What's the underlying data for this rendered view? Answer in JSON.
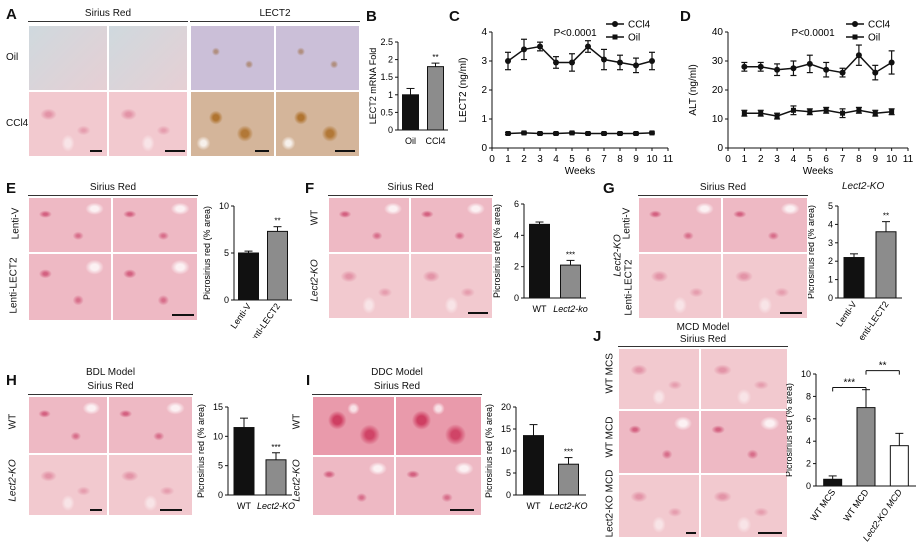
{
  "panels": {
    "A": {
      "letter": "A",
      "headers": [
        "Sirius Red",
        "LECT2"
      ],
      "rows": [
        "Oil",
        "CCl4"
      ]
    },
    "B": {
      "letter": "B"
    },
    "C": {
      "letter": "C"
    },
    "D": {
      "letter": "D"
    },
    "E": {
      "letter": "E",
      "header": "Sirius Red",
      "rows": [
        "Lenti-V",
        "Lenti-LECT2"
      ]
    },
    "F": {
      "letter": "F",
      "header": "Sirius Red",
      "rows": [
        "WT",
        "Lect2-KO"
      ]
    },
    "G": {
      "letter": "G",
      "header": "Sirius Red",
      "group": "Lect2-KO",
      "rows": [
        "Lenti-V",
        "Lenti-LECT2"
      ],
      "chart_title": "Lect2-KO"
    },
    "H": {
      "letter": "H",
      "title": "BDL Model",
      "header": "Sirius Red",
      "rows": [
        "WT",
        "Lect2-KO"
      ]
    },
    "I": {
      "letter": "I",
      "title": "DDC Model",
      "header": "Sirius Red",
      "rows": [
        "WT",
        "Lect2-KO"
      ]
    },
    "J": {
      "letter": "J",
      "title": "MCD Model",
      "header": "Sirius Red",
      "rows": [
        "WT MCS",
        "WT MCD",
        "Lect2-KO MCD"
      ]
    }
  },
  "chart_data": [
    {
      "id": "B",
      "type": "bar",
      "categories": [
        "Oil",
        "CCl4"
      ],
      "values": [
        1.0,
        1.8
      ],
      "errors": [
        0.18,
        0.1
      ],
      "colors": [
        "#111111",
        "#8c8c8c"
      ],
      "ylabel": "LECT2 mRNA Fold",
      "ylim": [
        0,
        2.5
      ],
      "yticks": [
        0,
        0.5,
        1,
        1.5,
        2,
        2.5
      ],
      "significance": [
        {
          "text": "**",
          "over": 1
        }
      ]
    },
    {
      "id": "C",
      "type": "line",
      "x": [
        1,
        2,
        3,
        4,
        5,
        6,
        7,
        8,
        9,
        10
      ],
      "series": [
        {
          "name": "CCl4",
          "marker": "circle",
          "values": [
            3.0,
            3.4,
            3.5,
            2.95,
            2.95,
            3.5,
            3.05,
            2.95,
            2.85,
            3.0
          ],
          "errors": [
            0.3,
            0.35,
            0.15,
            0.2,
            0.3,
            0.2,
            0.35,
            0.25,
            0.25,
            0.3
          ]
        },
        {
          "name": "Oil",
          "marker": "square",
          "values": [
            0.5,
            0.52,
            0.5,
            0.5,
            0.52,
            0.5,
            0.5,
            0.5,
            0.5,
            0.52
          ],
          "errors": [
            0.03,
            0.03,
            0.03,
            0.03,
            0.03,
            0.03,
            0.03,
            0.03,
            0.03,
            0.03
          ]
        }
      ],
      "xlabel": "Weeks",
      "ylabel": "LECT2 (ng/ml)",
      "xlim": [
        0,
        11
      ],
      "ylim": [
        0,
        4
      ],
      "xticks": [
        0,
        1,
        2,
        3,
        4,
        5,
        6,
        7,
        8,
        9,
        10,
        11
      ],
      "yticks": [
        0,
        1,
        2,
        3,
        4
      ],
      "annotation": "P<0.0001",
      "legend": "top-right"
    },
    {
      "id": "D",
      "type": "line",
      "x": [
        1,
        2,
        3,
        4,
        5,
        6,
        7,
        8,
        9,
        10
      ],
      "series": [
        {
          "name": "CCl4",
          "marker": "circle",
          "values": [
            28,
            28,
            27,
            27.5,
            29,
            27,
            26,
            32,
            26,
            29.5
          ],
          "errors": [
            1.5,
            1.5,
            2,
            2.5,
            3,
            2.5,
            1.5,
            3.5,
            2.5,
            4
          ]
        },
        {
          "name": "Oil",
          "marker": "square",
          "values": [
            12,
            12,
            11,
            13,
            12.5,
            13,
            12,
            13,
            12,
            12.5
          ],
          "errors": [
            1,
            1,
            1,
            1.5,
            1,
            1,
            1.5,
            1,
            1,
            1
          ]
        }
      ],
      "xlabel": "Weeks",
      "ylabel": "ALT (ng/ml)",
      "xlim": [
        0,
        11
      ],
      "ylim": [
        0,
        40
      ],
      "xticks": [
        0,
        1,
        2,
        3,
        4,
        5,
        6,
        7,
        8,
        9,
        10,
        11
      ],
      "yticks": [
        0,
        10,
        20,
        30,
        40
      ],
      "annotation": "P<0.0001",
      "legend": "top-right"
    },
    {
      "id": "E",
      "type": "bar",
      "categories": [
        "Lenti-V",
        "Lenti-LECT2"
      ],
      "values": [
        5.0,
        7.3
      ],
      "errors": [
        0.2,
        0.5
      ],
      "colors": [
        "#111111",
        "#8c8c8c"
      ],
      "ylabel": "Picrosirius red (% area)",
      "ylim": [
        0,
        10
      ],
      "yticks": [
        0,
        5,
        10
      ],
      "significance": [
        {
          "text": "**",
          "over": 1
        }
      ]
    },
    {
      "id": "F",
      "type": "bar",
      "categories": [
        "WT",
        "Lect2-ko"
      ],
      "values": [
        4.7,
        2.1
      ],
      "errors": [
        0.15,
        0.3
      ],
      "colors": [
        "#111111",
        "#8c8c8c"
      ],
      "ylabel": "Picrosirius red (% area)",
      "ylim": [
        0,
        6
      ],
      "yticks": [
        0,
        2,
        4,
        6
      ],
      "significance": [
        {
          "text": "***",
          "over": 1
        }
      ]
    },
    {
      "id": "G",
      "type": "bar",
      "categories": [
        "Lenti-V",
        "Lenti-LECT2"
      ],
      "values": [
        2.2,
        3.6
      ],
      "errors": [
        0.2,
        0.55
      ],
      "colors": [
        "#111111",
        "#8c8c8c"
      ],
      "ylabel": "Picrosirius red (% area)",
      "ylim": [
        0,
        5
      ],
      "yticks": [
        0,
        1,
        2,
        3,
        4,
        5
      ],
      "significance": [
        {
          "text": "**",
          "over": 1
        }
      ]
    },
    {
      "id": "H",
      "type": "bar",
      "categories": [
        "WT",
        "Lect2-KO"
      ],
      "values": [
        11.5,
        6.0
      ],
      "errors": [
        1.6,
        1.2
      ],
      "colors": [
        "#111111",
        "#8c8c8c"
      ],
      "ylabel": "Picrosirius red (% area)",
      "ylim": [
        0,
        15
      ],
      "yticks": [
        0,
        5,
        10,
        15
      ],
      "significance": [
        {
          "text": "***",
          "over": 1
        }
      ]
    },
    {
      "id": "I",
      "type": "bar",
      "categories": [
        "WT",
        "Lect2-KO"
      ],
      "values": [
        13.5,
        7.0
      ],
      "errors": [
        2.5,
        1.5
      ],
      "colors": [
        "#111111",
        "#8c8c8c"
      ],
      "ylabel": "Picrosirius red (% area)",
      "ylim": [
        0,
        20
      ],
      "yticks": [
        0,
        5,
        10,
        15,
        20
      ],
      "significance": [
        {
          "text": "***",
          "over": 1
        }
      ]
    },
    {
      "id": "J",
      "type": "bar",
      "categories": [
        "WT MCS",
        "WT MCD",
        "Lect2-KO MCD"
      ],
      "values": [
        0.6,
        7.0,
        3.6
      ],
      "errors": [
        0.3,
        1.6,
        1.1
      ],
      "colors": [
        "#111111",
        "#8c8c8c",
        "#ffffff"
      ],
      "ylabel": "Picrosirius red (% area)",
      "ylim": [
        0,
        10
      ],
      "yticks": [
        0,
        2,
        4,
        6,
        8,
        10
      ],
      "significance": [
        {
          "text": "***",
          "from": 0,
          "to": 1
        },
        {
          "text": "**",
          "from": 1,
          "to": 2
        }
      ]
    }
  ]
}
